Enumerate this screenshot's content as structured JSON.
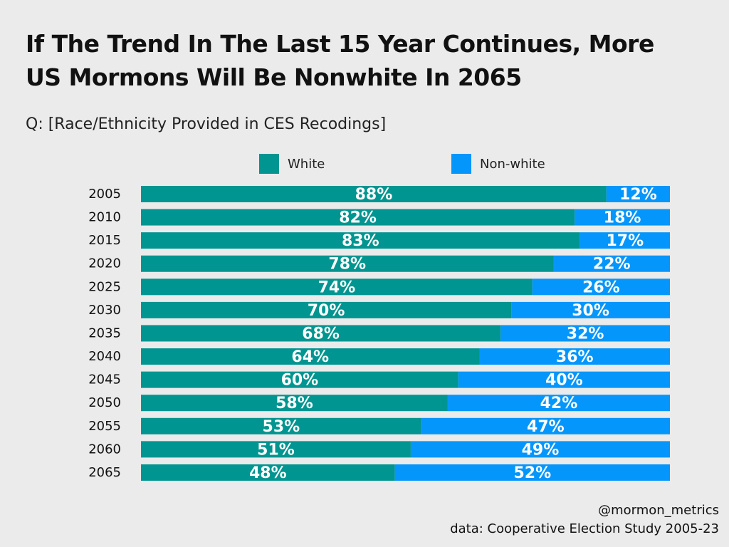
{
  "title_lines": [
    "If The Trend In The Last 15 Year Continues, More",
    "US Mormons Will Be Nonwhite In 2065"
  ],
  "subtitle": "Q: [Race/Ethnicity Provided in CES Recodings]",
  "colors": {
    "background": "#ebebeb",
    "white": "#009590",
    "nonwhite": "#0596fb"
  },
  "credits": {
    "handle": "@mormon_metrics",
    "source": "data: Cooperative Election Study 2005-23"
  },
  "chart_data": {
    "type": "bar",
    "orientation": "horizontal",
    "stacked": true,
    "percent": true,
    "title": "If The Trend In The Last 15 Year Continues, More US Mormons Will Be Nonwhite In 2065",
    "subtitle": "Q: [Race/Ethnicity Provided in CES Recodings]",
    "legend_position": "top",
    "grid": false,
    "xlim": [
      0,
      100
    ],
    "categories": [
      "2005",
      "2010",
      "2015",
      "2020",
      "2025",
      "2030",
      "2035",
      "2040",
      "2045",
      "2050",
      "2055",
      "2060",
      "2065"
    ],
    "series": [
      {
        "name": "White",
        "color": "#009590",
        "values": [
          88,
          82,
          83,
          78,
          74,
          70,
          68,
          64,
          60,
          58,
          53,
          51,
          48
        ],
        "labels": [
          "88%",
          "82%",
          "83%",
          "78%",
          "74%",
          "70%",
          "68%",
          "64%",
          "60%",
          "58%",
          "53%",
          "51%",
          "48%"
        ]
      },
      {
        "name": "Non-white",
        "color": "#0596fb",
        "values": [
          12,
          18,
          17,
          22,
          26,
          30,
          32,
          36,
          40,
          42,
          47,
          49,
          52
        ],
        "labels": [
          "12%",
          "18%",
          "17%",
          "22%",
          "26%",
          "30%",
          "32%",
          "36%",
          "40%",
          "42%",
          "47%",
          "49%",
          "52%"
        ]
      }
    ]
  }
}
